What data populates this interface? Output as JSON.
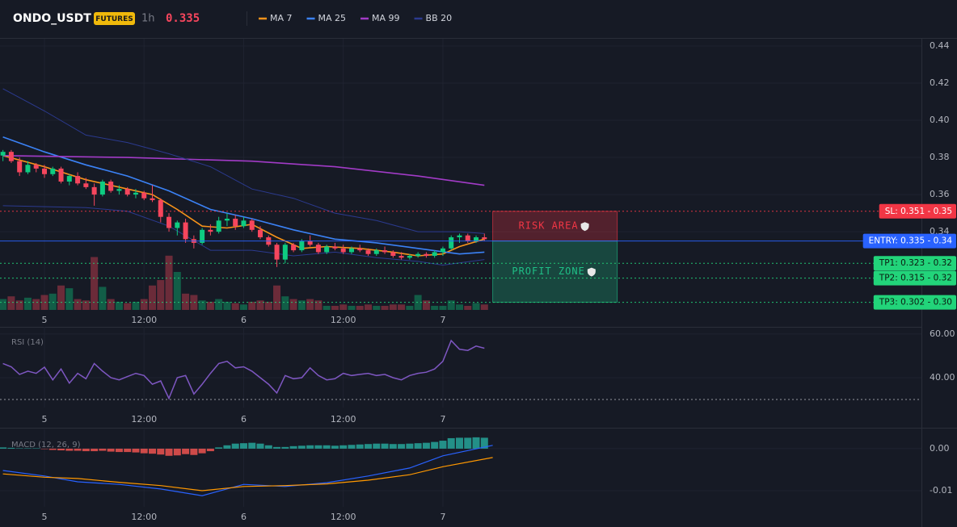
{
  "chart_data": [
    {
      "type": "candlestick",
      "title": "ONDO_USDT",
      "badge": "FUTURES",
      "interval": "1h",
      "last_price": 0.335,
      "xlim": [
        -5.355,
        105.65
      ],
      "xticks": [
        {
          "value": 0,
          "label": "5"
        },
        {
          "value": 12,
          "label": "12:00"
        },
        {
          "value": 24,
          "label": "6"
        },
        {
          "value": 36,
          "label": "12:00"
        },
        {
          "value": 48,
          "label": "7"
        }
      ],
      "ylim": [
        0.2979,
        0.4439
      ],
      "yticks": [
        0.44,
        0.42,
        {
          "value": 0.4,
          "label": "0.40"
        },
        0.38,
        0.36,
        0.34
      ],
      "grid": true,
      "up_color": "#0ecb81",
      "down_color": "#f6465d",
      "candles": {
        "x": [
          -5,
          -4,
          -3,
          -2,
          -1,
          0,
          1,
          2,
          3,
          4,
          5,
          6,
          7,
          8,
          9,
          10,
          11,
          12,
          13,
          14,
          15,
          16,
          17,
          18,
          19,
          20,
          21,
          22,
          23,
          24,
          25,
          26,
          27,
          28,
          29,
          30,
          31,
          32,
          33,
          34,
          35,
          36,
          37,
          38,
          39,
          40,
          41,
          42,
          43,
          44,
          45,
          46,
          47,
          48,
          49,
          50,
          51,
          52,
          53
        ],
        "open": [
          0.381,
          0.383,
          0.378,
          0.372,
          0.376,
          0.374,
          0.371,
          0.374,
          0.367,
          0.37,
          0.366,
          0.364,
          0.36,
          0.367,
          0.362,
          0.363,
          0.36,
          0.361,
          0.358,
          0.357,
          0.348,
          0.342,
          0.345,
          0.336,
          0.334,
          0.341,
          0.34,
          0.346,
          0.347,
          0.343,
          0.346,
          0.341,
          0.337,
          0.333,
          0.325,
          0.333,
          0.33,
          0.335,
          0.333,
          0.329,
          0.332,
          0.331,
          0.329,
          0.331,
          0.33,
          0.328,
          0.33,
          0.329,
          0.327,
          0.326,
          0.327,
          0.328,
          0.327,
          0.329,
          0.331,
          0.337,
          0.338,
          0.335,
          0.337
        ],
        "high": [
          0.384,
          0.384,
          0.38,
          0.378,
          0.377,
          0.376,
          0.375,
          0.375,
          0.371,
          0.372,
          0.369,
          0.366,
          0.368,
          0.368,
          0.365,
          0.364,
          0.363,
          0.362,
          0.365,
          0.358,
          0.35,
          0.346,
          0.347,
          0.338,
          0.342,
          0.344,
          0.348,
          0.35,
          0.349,
          0.348,
          0.347,
          0.343,
          0.338,
          0.334,
          0.334,
          0.334,
          0.336,
          0.338,
          0.334,
          0.333,
          0.334,
          0.333,
          0.332,
          0.333,
          0.331,
          0.331,
          0.332,
          0.33,
          0.329,
          0.328,
          0.329,
          0.329,
          0.33,
          0.332,
          0.338,
          0.339,
          0.339,
          0.338,
          0.339
        ],
        "low": [
          0.378,
          0.377,
          0.37,
          0.371,
          0.372,
          0.369,
          0.37,
          0.366,
          0.365,
          0.365,
          0.363,
          0.354,
          0.359,
          0.361,
          0.36,
          0.359,
          0.358,
          0.357,
          0.356,
          0.345,
          0.34,
          0.338,
          0.334,
          0.331,
          0.333,
          0.338,
          0.339,
          0.343,
          0.341,
          0.342,
          0.34,
          0.336,
          0.332,
          0.321,
          0.323,
          0.329,
          0.329,
          0.332,
          0.328,
          0.328,
          0.33,
          0.328,
          0.328,
          0.329,
          0.327,
          0.327,
          0.328,
          0.326,
          0.325,
          0.325,
          0.326,
          0.326,
          0.326,
          0.327,
          0.33,
          0.334,
          0.334,
          0.334,
          0.335
        ],
        "close": [
          0.383,
          0.378,
          0.372,
          0.376,
          0.374,
          0.371,
          0.374,
          0.367,
          0.37,
          0.366,
          0.364,
          0.36,
          0.367,
          0.362,
          0.363,
          0.36,
          0.361,
          0.358,
          0.357,
          0.348,
          0.342,
          0.345,
          0.336,
          0.334,
          0.341,
          0.34,
          0.346,
          0.347,
          0.343,
          0.346,
          0.341,
          0.337,
          0.333,
          0.325,
          0.333,
          0.33,
          0.335,
          0.333,
          0.329,
          0.332,
          0.331,
          0.329,
          0.331,
          0.33,
          0.328,
          0.33,
          0.329,
          0.327,
          0.326,
          0.327,
          0.328,
          0.327,
          0.329,
          0.331,
          0.337,
          0.338,
          0.335,
          0.337,
          0.336
        ]
      },
      "volume": {
        "ylim": [
          0,
          1000
        ],
        "values": [
          40,
          50,
          35,
          45,
          40,
          55,
          60,
          90,
          80,
          40,
          35,
          195,
          85,
          40,
          30,
          25,
          30,
          40,
          90,
          110,
          200,
          140,
          60,
          55,
          35,
          30,
          40,
          30,
          25,
          20,
          30,
          35,
          30,
          90,
          50,
          40,
          35,
          40,
          35,
          15,
          15,
          20,
          15,
          15,
          20,
          15,
          15,
          20,
          20,
          15,
          55,
          35,
          15,
          15,
          35,
          20,
          15,
          25,
          20
        ]
      },
      "series": [
        {
          "name": "MA 7",
          "color": "#f7931a",
          "width": 1.6,
          "x": [
            -5,
            0,
            5,
            10,
            13,
            16,
            19,
            22,
            25,
            28,
            31,
            34,
            38,
            42,
            45,
            48,
            50,
            53
          ],
          "values": [
            0.381,
            0.375,
            0.368,
            0.363,
            0.36,
            0.352,
            0.343,
            0.342,
            0.344,
            0.337,
            0.331,
            0.332,
            0.331,
            0.329,
            0.327,
            0.328,
            0.332,
            0.336
          ]
        },
        {
          "name": "MA 25",
          "color": "#3b82f6",
          "width": 1.6,
          "x": [
            -5,
            0,
            5,
            10,
            15,
            20,
            25,
            30,
            35,
            40,
            45,
            50,
            53
          ],
          "values": [
            0.391,
            0.383,
            0.376,
            0.37,
            0.362,
            0.352,
            0.347,
            0.341,
            0.336,
            0.334,
            0.331,
            0.328,
            0.329
          ]
        },
        {
          "name": "MA 99",
          "color": "#a23bc7",
          "width": 1.6,
          "x": [
            -5,
            10,
            25,
            35,
            45,
            53
          ],
          "values": [
            0.381,
            0.38,
            0.378,
            0.375,
            0.37,
            0.365
          ]
        },
        {
          "name": "BB 20",
          "color": "#2b3a8f",
          "width": 1,
          "x": [
            -5,
            0,
            5,
            10,
            15,
            20,
            25,
            30,
            35,
            40,
            45,
            50,
            53
          ],
          "values": [
            0.417,
            0.405,
            0.392,
            0.388,
            0.382,
            0.375,
            0.363,
            0.358,
            0.35,
            0.346,
            0.34,
            0.34,
            0.339
          ],
          "lower": {
            "x": [
              -5,
              5,
              10,
              15,
              20,
              25,
              30,
              35,
              40,
              45,
              48,
              53
            ],
            "values": [
              0.354,
              0.353,
              0.351,
              0.343,
              0.33,
              0.33,
              0.327,
              0.329,
              0.326,
              0.324,
              0.322,
              0.325
            ]
          }
        }
      ],
      "levels": [
        {
          "label": "SL: 0.351 - 0.35",
          "value": 0.351,
          "color": "#f23645",
          "text_color": "#ffffff",
          "style": "dotted"
        },
        {
          "label": "ENTRY: 0.335 - 0.34",
          "value": 0.335,
          "color": "#2962ff",
          "text_color": "#ffffff",
          "style": "solid"
        },
        {
          "label": "TP1: 0.323 - 0.32",
          "value": 0.323,
          "color": "#22d47a",
          "text_color": "#0b1a10",
          "style": "dotted"
        },
        {
          "label": "TP2: 0.315 - 0.32",
          "value": 0.315,
          "color": "#22d47a",
          "text_color": "#0b1a10",
          "style": "dotted"
        },
        {
          "label": "TP3: 0.302 - 0.30",
          "value": 0.302,
          "color": "#22d47a",
          "text_color": "#0b1a10",
          "style": "dotted"
        }
      ],
      "zones": [
        {
          "label": "RISK AREA",
          "from": 0.335,
          "to": 0.351,
          "xrange": [
            54,
            69
          ],
          "color": "#f23645"
        },
        {
          "label": "PROFIT ZONE",
          "from": 0.302,
          "to": 0.335,
          "xrange": [
            54,
            69
          ],
          "color": "#1fbf86"
        }
      ]
    },
    {
      "type": "line",
      "title": "RSI (14)",
      "xlim": [
        -5.355,
        105.65
      ],
      "xticks": [
        {
          "value": 0,
          "label": "5"
        },
        {
          "value": 12,
          "label": "12:00"
        },
        {
          "value": 24,
          "label": "6"
        },
        {
          "value": 36,
          "label": "12:00"
        },
        {
          "value": 48,
          "label": "7"
        }
      ],
      "ylim": [
        26.3,
        63.3
      ],
      "yticks": [
        {
          "value": 60,
          "label": "60.00"
        },
        {
          "value": 40,
          "label": "40.00"
        }
      ],
      "levels": [
        30
      ],
      "grid": true,
      "x": [
        -5,
        -4,
        -3,
        -2,
        -1,
        0,
        1,
        2,
        3,
        4,
        5,
        6,
        7,
        8,
        9,
        10,
        11,
        12,
        13,
        14,
        15,
        16,
        17,
        18,
        19,
        20,
        21,
        22,
        23,
        24,
        25,
        26,
        27,
        28,
        29,
        30,
        31,
        32,
        33,
        34,
        35,
        36,
        37,
        38,
        39,
        40,
        41,
        42,
        43,
        44,
        45,
        46,
        47,
        48,
        49,
        50,
        51,
        52,
        53
      ],
      "series": [
        {
          "color": "#7e57c2",
          "values": [
            46.5,
            45,
            41.5,
            43,
            42,
            44.8,
            39,
            44,
            37.5,
            42,
            39.5,
            46.5,
            43,
            40,
            39,
            40.5,
            42,
            41,
            37,
            38.5,
            30.5,
            40,
            41,
            32.5,
            37,
            42,
            46.5,
            47.5,
            44.5,
            45,
            43,
            40,
            37,
            33,
            41,
            39.5,
            40,
            44.5,
            41,
            39,
            39.5,
            42,
            41,
            41.5,
            42,
            41,
            41.5,
            40,
            39,
            41,
            42,
            42.5,
            44,
            47.5,
            57,
            53,
            52.5,
            54.5,
            53.5
          ]
        }
      ]
    },
    {
      "type": "macd",
      "title": "MACD (12, 26, 9)",
      "xlim": [
        -5.355,
        105.65
      ],
      "xticks": [
        {
          "value": 0,
          "label": "5"
        },
        {
          "value": 12,
          "label": "12:00"
        },
        {
          "value": 24,
          "label": "6"
        },
        {
          "value": 36,
          "label": "12:00"
        },
        {
          "value": 48,
          "label": "7"
        }
      ],
      "ylim": [
        -0.01385,
        0.0046
      ],
      "yticks": [
        {
          "value": 0,
          "label": "0.00"
        },
        -0.01
      ],
      "grid": true,
      "x": [
        -5,
        -4,
        -3,
        -2,
        -1,
        0,
        1,
        2,
        3,
        4,
        5,
        6,
        7,
        8,
        9,
        10,
        11,
        12,
        13,
        14,
        15,
        16,
        17,
        18,
        19,
        20,
        21,
        22,
        23,
        24,
        25,
        26,
        27,
        28,
        29,
        30,
        31,
        32,
        33,
        34,
        35,
        36,
        37,
        38,
        39,
        40,
        41,
        42,
        43,
        44,
        45,
        46,
        47,
        48,
        49,
        50,
        51,
        52,
        53
      ],
      "histogram": {
        "up_color": "#26a69a",
        "down_color": "#ef5350",
        "values": [
          0.0003,
          0.0002,
          0.0001,
          0.0001,
          0.0001,
          -0.0001,
          -0.0003,
          -0.0004,
          -0.0005,
          -0.0005,
          -0.0006,
          -0.0006,
          -0.0005,
          -0.0007,
          -0.0008,
          -0.0008,
          -0.0009,
          -0.0011,
          -0.0012,
          -0.0014,
          -0.0017,
          -0.0016,
          -0.0013,
          -0.0015,
          -0.0011,
          -0.0006,
          0.0003,
          0.0008,
          0.0012,
          0.0013,
          0.0014,
          0.0012,
          0.0008,
          0.0004,
          0.0004,
          0.0006,
          0.0007,
          0.0008,
          0.0008,
          0.0008,
          0.0007,
          0.0008,
          0.0009,
          0.001,
          0.0011,
          0.0012,
          0.0012,
          0.0011,
          0.0011,
          0.0012,
          0.0013,
          0.0014,
          0.0016,
          0.0019,
          0.0025,
          0.0026,
          0.0026,
          0.0027,
          0.0026
        ]
      },
      "series": [
        {
          "color": "#2962ff",
          "x": [
            -5,
            0,
            4,
            9,
            14,
            19,
            24,
            29,
            34,
            39,
            44,
            48,
            54
          ],
          "values": [
            -0.0052,
            -0.0065,
            -0.0079,
            -0.0085,
            -0.0096,
            -0.0112,
            -0.0085,
            -0.009,
            -0.0081,
            -0.0065,
            -0.0046,
            -0.0017,
            0.0008
          ]
        },
        {
          "color": "#ff9800",
          "x": [
            -5,
            0,
            4,
            9,
            14,
            19,
            24,
            29,
            34,
            39,
            44,
            48,
            54
          ],
          "values": [
            -0.006,
            -0.0068,
            -0.0071,
            -0.008,
            -0.0088,
            -0.01,
            -0.009,
            -0.0088,
            -0.0084,
            -0.0075,
            -0.0062,
            -0.0043,
            -0.0021
          ]
        }
      ]
    }
  ]
}
